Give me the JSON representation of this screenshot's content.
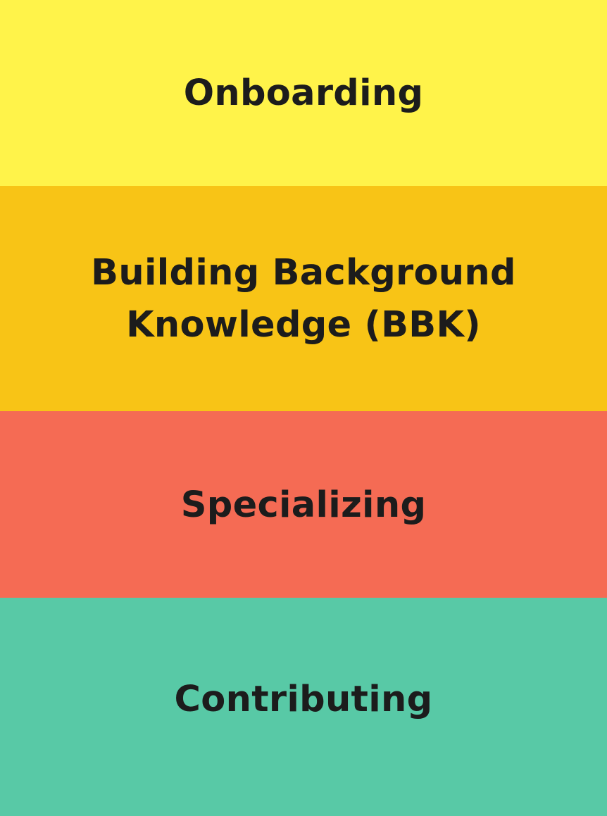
{
  "stages": [
    {
      "label": "Onboarding",
      "color": "#FFF34A"
    },
    {
      "label": "Building Background\nKnowledge (BBK)",
      "color": "#F8C416"
    },
    {
      "label": "Specializing",
      "color": "#F56B54"
    },
    {
      "label": "Contributing",
      "color": "#58C9A6"
    }
  ],
  "text_color": "#1C1C1C"
}
